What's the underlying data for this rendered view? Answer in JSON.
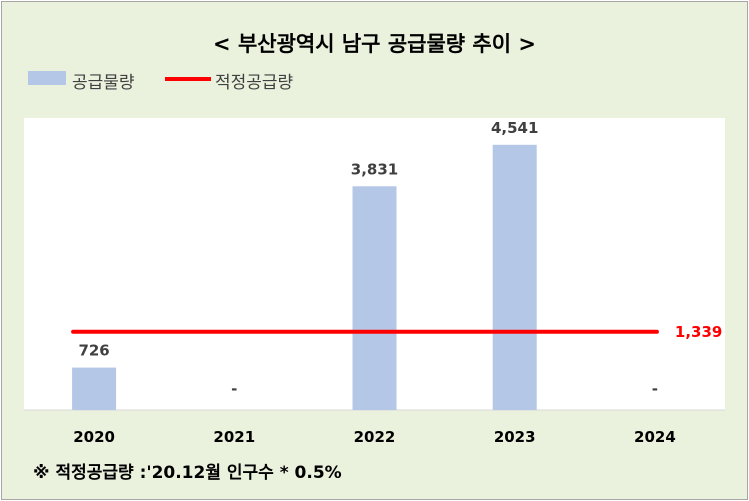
{
  "title": "< 부산광역시 남구 공급물량 추이 >",
  "legend": {
    "bar_label": "공급물량",
    "line_label": "적정공급량"
  },
  "footnote": "※ 적정공급량 :'20.12월 인구수 * 0.5%",
  "colors": {
    "bar": "#b4c7e7",
    "line": "#ff0000",
    "background": "#eaf1dd",
    "plot_area": "#ffffff"
  },
  "chart_data": {
    "type": "bar",
    "categories": [
      "2020",
      "2021",
      "2022",
      "2023",
      "2024"
    ],
    "series": [
      {
        "name": "공급물량",
        "type": "bar",
        "values": [
          726,
          0,
          3831,
          4541,
          0
        ],
        "data_labels": [
          "726",
          "-",
          "3,831",
          "4,541",
          "-"
        ]
      },
      {
        "name": "적정공급량",
        "type": "line",
        "values": [
          1339,
          1339,
          1339,
          1339,
          1339
        ],
        "end_label": "1,339"
      }
    ],
    "ylim": [
      0,
      5000
    ],
    "grid": false,
    "legend_position": "top-left"
  }
}
